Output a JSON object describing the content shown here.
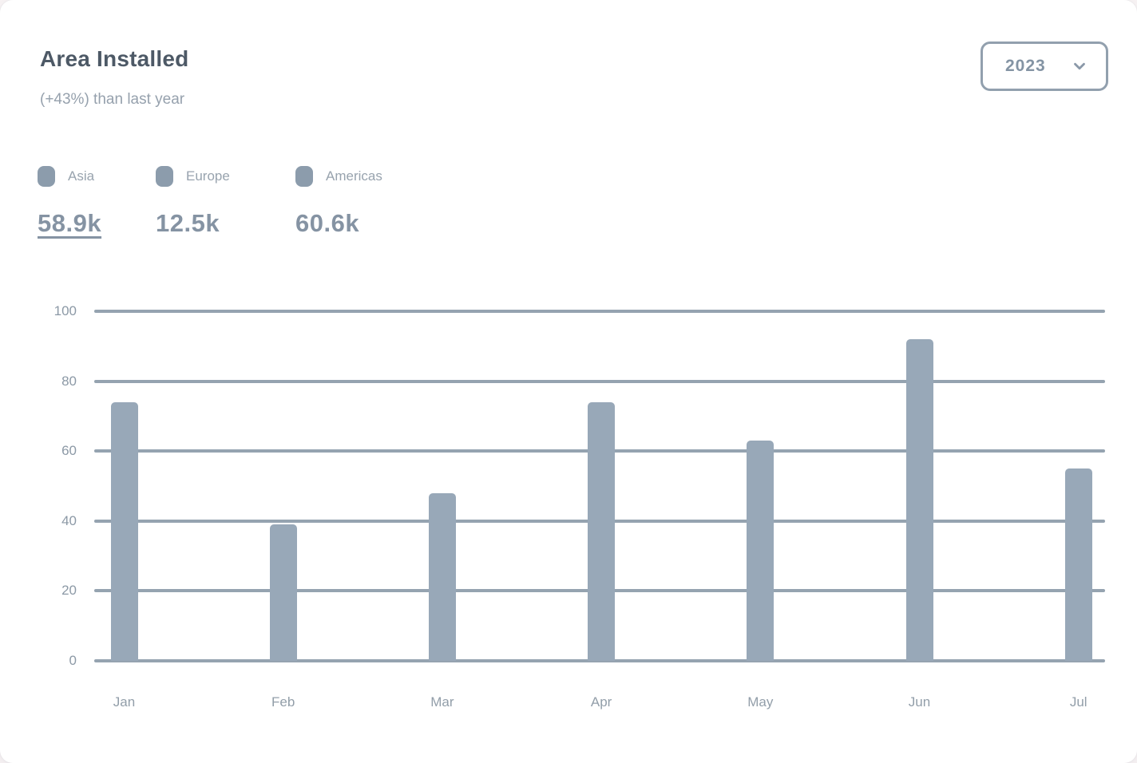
{
  "card": {
    "title": "Area Installed",
    "subtitle": "(+43%) than last year",
    "year_select": {
      "value": "2023"
    }
  },
  "legend": {
    "items": [
      {
        "label": "Asia",
        "value": "58.9k"
      },
      {
        "label": "Europe",
        "value": "12.5k"
      },
      {
        "label": "Americas",
        "value": "60.6k"
      }
    ]
  },
  "chart_data": {
    "type": "bar",
    "title": "Area Installed",
    "categories": [
      "Jan",
      "Feb",
      "Mar",
      "Apr",
      "May",
      "Jun",
      "Jul"
    ],
    "values": [
      74,
      39,
      48,
      74,
      63,
      92,
      55
    ],
    "xlabel": "",
    "ylabel": "",
    "ylim": [
      0,
      100
    ],
    "yticks": [
      0,
      20,
      40,
      60,
      80,
      100
    ],
    "grid": "horizontal",
    "legend_position": "top-left",
    "colors": {
      "bar": "#98a8b8",
      "gridline": "#95a3b0",
      "axis_label": "#8c99a6",
      "title": "#4d5966",
      "subtitle": "#96a1ad",
      "legend_marker": "#8c9cac"
    }
  }
}
